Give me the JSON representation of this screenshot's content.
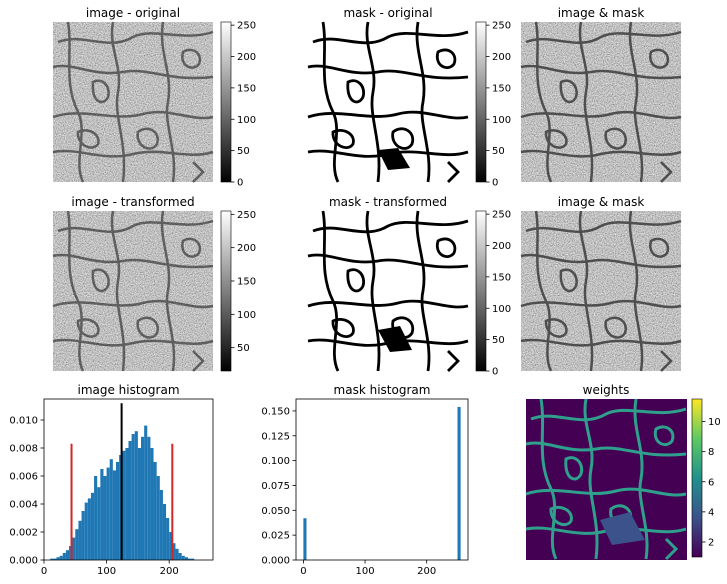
{
  "panels": {
    "p1": {
      "title": "image - original",
      "colorbar_ticks": [
        "0",
        "50",
        "100",
        "150",
        "200",
        "250"
      ]
    },
    "p2": {
      "title": "mask - original",
      "colorbar_ticks": [
        "0",
        "50",
        "100",
        "150",
        "200",
        "250"
      ]
    },
    "p3": {
      "title": "image & mask"
    },
    "p4": {
      "title": "image - transformed",
      "colorbar_ticks": [
        "50",
        "100",
        "150",
        "200",
        "250"
      ]
    },
    "p5": {
      "title": "mask - transformed",
      "colorbar_ticks": [
        "0",
        "50",
        "100",
        "150",
        "200",
        "250"
      ]
    },
    "p6": {
      "title": "image & mask"
    },
    "p9": {
      "title": "weights",
      "colorbar_ticks": [
        "2",
        "4",
        "6",
        "8",
        "10"
      ]
    }
  },
  "colors": {
    "hist_fill": "#1f77b4",
    "red_line": "#d62728",
    "black_line": "#000000"
  },
  "chart_data": [
    {
      "type": "bar",
      "title": "image histogram",
      "xlim": [
        0,
        270
      ],
      "ylim": [
        0,
        0.0115
      ],
      "xticks": [
        0,
        100,
        200
      ],
      "yticks": [
        0.0,
        0.002,
        0.004,
        0.006,
        0.008,
        0.01
      ],
      "ytick_labels": [
        "0.000",
        "0.002",
        "0.004",
        "0.006",
        "0.008",
        "0.010"
      ],
      "bin_width": 5,
      "x": [
        0,
        5,
        10,
        15,
        20,
        25,
        30,
        35,
        40,
        45,
        50,
        55,
        60,
        65,
        70,
        75,
        80,
        85,
        90,
        95,
        100,
        105,
        110,
        115,
        120,
        125,
        130,
        135,
        140,
        145,
        150,
        155,
        160,
        165,
        170,
        175,
        180,
        185,
        190,
        195,
        200,
        205,
        210,
        215,
        220,
        225,
        230,
        235,
        240,
        245
      ],
      "values": [
        0.0,
        0.0,
        0.0001,
        0.0001,
        0.0002,
        0.0003,
        0.0005,
        0.0007,
        0.001,
        0.0016,
        0.0022,
        0.0028,
        0.0035,
        0.0041,
        0.0044,
        0.0048,
        0.006,
        0.0052,
        0.0065,
        0.006,
        0.0066,
        0.0072,
        0.0064,
        0.007,
        0.0075,
        0.0078,
        0.008,
        0.0085,
        0.009,
        0.0092,
        0.008,
        0.0088,
        0.0096,
        0.0088,
        0.008,
        0.007,
        0.006,
        0.005,
        0.004,
        0.003,
        0.002,
        0.0012,
        0.0008,
        0.0005,
        0.0003,
        0.0002,
        0.0001,
        0.0001,
        0.0,
        0.0
      ],
      "vlines": [
        {
          "x": 44,
          "ymax": 0.0083,
          "color": "#d62728"
        },
        {
          "x": 124,
          "ymax": 0.0112,
          "color": "#000000"
        },
        {
          "x": 205,
          "ymax": 0.0083,
          "color": "#d62728"
        }
      ]
    },
    {
      "type": "bar",
      "title": "mask histogram",
      "xlim": [
        -12,
        267
      ],
      "ylim": [
        0,
        0.162
      ],
      "xticks": [
        0,
        100,
        200
      ],
      "yticks": [
        0.0,
        0.025,
        0.05,
        0.075,
        0.1,
        0.125,
        0.15
      ],
      "ytick_labels": [
        "0.000",
        "0.025",
        "0.050",
        "0.075",
        "0.100",
        "0.125",
        "0.150"
      ],
      "bin_width": 5,
      "x": [
        0,
        250
      ],
      "values": [
        0.042,
        0.154
      ]
    }
  ]
}
